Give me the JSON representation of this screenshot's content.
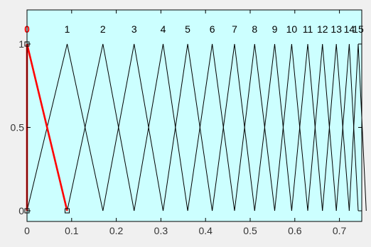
{
  "chart_data": {
    "type": "line",
    "title": "",
    "xlabel": "",
    "ylabel": "",
    "xlim": [
      0,
      0.75
    ],
    "ylim": [
      0,
      1
    ],
    "x_ticks": [
      "0",
      "0.1",
      "0.2",
      "0.3",
      "0.4",
      "0.5",
      "0.6",
      "0.7"
    ],
    "y_ticks": [
      "0",
      "0.5",
      "1"
    ],
    "grid": false,
    "colors": {
      "plot_background": "#ccffff",
      "frame_background": "#f0f0f0",
      "curve": "#000000",
      "selected_curve": "#ff0000"
    },
    "selected_series": "0",
    "series": [
      {
        "name": "0",
        "x": [
          0,
          0,
          0.09
        ],
        "y": [
          0,
          1,
          0
        ]
      },
      {
        "name": "1",
        "x": [
          0,
          0.09,
          0.17
        ],
        "y": [
          0,
          1,
          0
        ]
      },
      {
        "name": "2",
        "x": [
          0.09,
          0.17,
          0.24
        ],
        "y": [
          0,
          1,
          0
        ]
      },
      {
        "name": "3",
        "x": [
          0.17,
          0.24,
          0.305
        ],
        "y": [
          0,
          1,
          0
        ]
      },
      {
        "name": "4",
        "x": [
          0.24,
          0.305,
          0.36
        ],
        "y": [
          0,
          1,
          0
        ]
      },
      {
        "name": "5",
        "x": [
          0.305,
          0.36,
          0.415
        ],
        "y": [
          0,
          1,
          0
        ]
      },
      {
        "name": "6",
        "x": [
          0.36,
          0.415,
          0.465
        ],
        "y": [
          0,
          1,
          0
        ]
      },
      {
        "name": "7",
        "x": [
          0.415,
          0.465,
          0.51
        ],
        "y": [
          0,
          1,
          0
        ]
      },
      {
        "name": "8",
        "x": [
          0.465,
          0.51,
          0.555
        ],
        "y": [
          0,
          1,
          0
        ]
      },
      {
        "name": "9",
        "x": [
          0.51,
          0.555,
          0.593
        ],
        "y": [
          0,
          1,
          0
        ]
      },
      {
        "name": "10",
        "x": [
          0.555,
          0.593,
          0.629
        ],
        "y": [
          0,
          1,
          0
        ]
      },
      {
        "name": "11",
        "x": [
          0.593,
          0.629,
          0.662
        ],
        "y": [
          0,
          1,
          0
        ]
      },
      {
        "name": "12",
        "x": [
          0.629,
          0.662,
          0.693
        ],
        "y": [
          0,
          1,
          0
        ]
      },
      {
        "name": "13",
        "x": [
          0.662,
          0.693,
          0.722
        ],
        "y": [
          0,
          1,
          0
        ]
      },
      {
        "name": "14",
        "x": [
          0.693,
          0.722,
          0.742
        ],
        "y": [
          0,
          1,
          0
        ]
      },
      {
        "name": "15",
        "x": [
          0.722,
          0.742,
          0.76
        ],
        "y": [
          0,
          1,
          0
        ]
      }
    ]
  }
}
